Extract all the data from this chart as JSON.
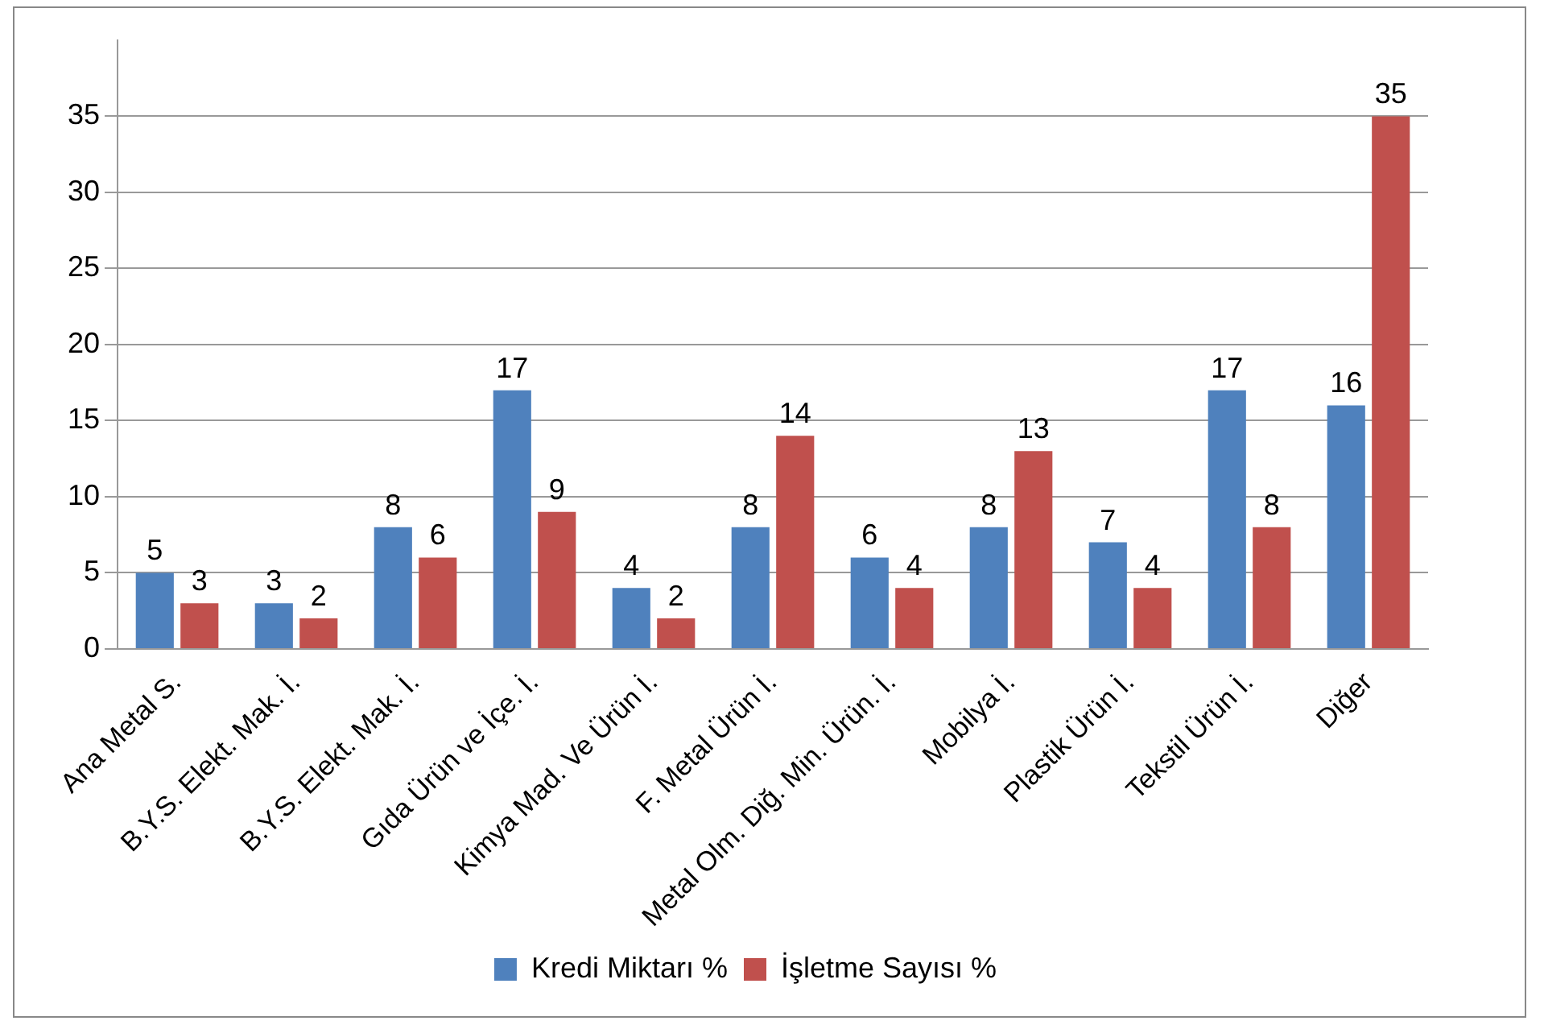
{
  "chart_data": {
    "type": "bar",
    "categories": [
      "Ana Metal S.",
      "B.Y.S. Elekt. Mak. İ.",
      "B.Y.S. Elekt. Mak. İ.",
      "Gıda Ürün ve İçe. İ.",
      "Kimya Mad. Ve Ürün İ.",
      "F. Metal Ürün İ.",
      "Metal Olm. Diğ. Min. Ürün. İ.",
      "Mobilya İ.",
      "Plastik Ürün İ.",
      "Tekstil Ürün İ.",
      "Diğer"
    ],
    "series": [
      {
        "name": "Kredi Miktarı %",
        "color": "#4f81bd",
        "values": [
          5,
          3,
          8,
          17,
          4,
          8,
          6,
          8,
          7,
          17,
          16
        ]
      },
      {
        "name": "İşletme Sayısı %",
        "color": "#c0504d",
        "values": [
          3,
          2,
          6,
          9,
          2,
          14,
          4,
          13,
          4,
          8,
          35
        ]
      }
    ],
    "ylim": [
      0,
      40
    ],
    "yticks": [
      0,
      5,
      10,
      15,
      20,
      25,
      30,
      35
    ],
    "grid": "y",
    "legend": "bottom",
    "data_labels": true
  }
}
